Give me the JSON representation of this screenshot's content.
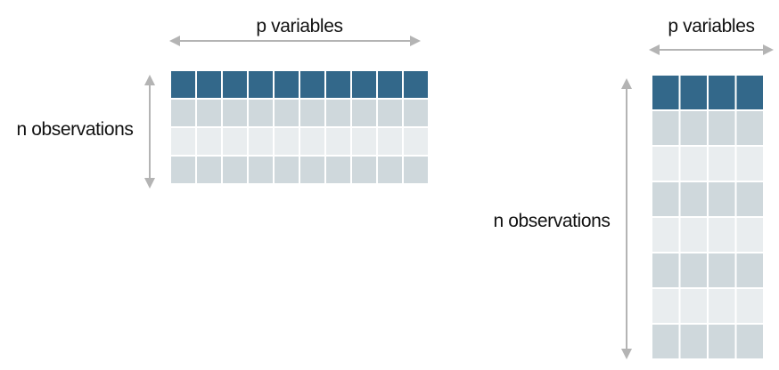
{
  "left_panel": {
    "columns_label": "p variables",
    "rows_label": "n observations",
    "columns": 10,
    "data_rows": 3
  },
  "right_panel": {
    "columns_label": "p variables",
    "rows_label": "n observations",
    "columns": 4,
    "data_rows": 7
  },
  "colors": {
    "header": "#33688a",
    "row_dark": "#cfd8dc",
    "row_light": "#e9edef",
    "arrow": "#b4b4b4"
  }
}
